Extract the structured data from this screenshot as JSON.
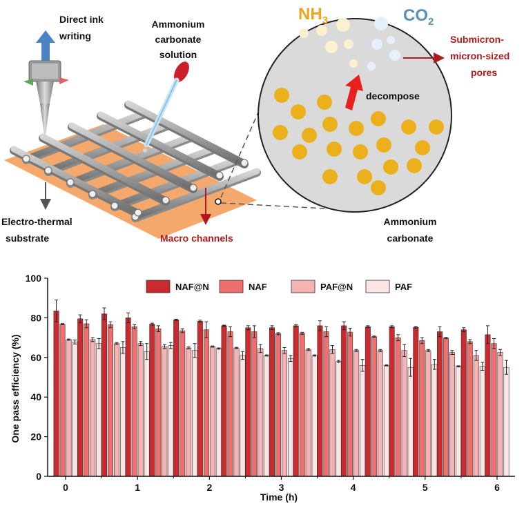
{
  "illustration": {
    "label_direct_ink": [
      "Direct ink",
      "writing"
    ],
    "label_ammonium_solution": [
      "Ammonium",
      "carbonate",
      "solution"
    ],
    "label_substrate": [
      "Electro-thermal",
      "substrate"
    ],
    "label_macro": "Macro channels",
    "label_nh3": "NH",
    "label_nh3_sub": "3",
    "label_co2": "CO",
    "label_co2_sub": "2",
    "label_pores": [
      "Submicron-",
      "micron-sized",
      "pores"
    ],
    "label_decompose": "decompose",
    "label_ammonium_carbonate": [
      "Ammonium",
      "carbonate"
    ],
    "colors": {
      "fiber": "#a7a7a7",
      "substrate": "#f5a86b",
      "red_label": "#b11a1a",
      "nh3": "#f0a41e",
      "co2": "#5a8fb8",
      "particle": "#ebb01c",
      "circle_fill": "#dadada",
      "arrow_blue": "#4a84c4"
    }
  },
  "chart_data": {
    "type": "bar",
    "xlabel": "Time (h)",
    "ylabel": "One pass efficiency (%)",
    "ylim": [
      0,
      100
    ],
    "xlim": [
      -0.25,
      6.25
    ],
    "yticks": [
      0,
      20,
      40,
      60,
      80,
      100
    ],
    "xticks": [
      0,
      1,
      2,
      3,
      4,
      5,
      6
    ],
    "legend_position": "top",
    "x": [
      0,
      0.333,
      0.667,
      1,
      1.333,
      1.667,
      2,
      2.333,
      2.667,
      3,
      3.333,
      3.667,
      4,
      4.333,
      4.667,
      5,
      5.333,
      5.667,
      6
    ],
    "series": [
      {
        "name": "NAF@N",
        "color": "#cc2a2f",
        "values": [
          83.5,
          79.5,
          82,
          80,
          76.8,
          79,
          78.3,
          76,
          75,
          75,
          76,
          76,
          76,
          75.5,
          75.5,
          75.2,
          73,
          74,
          71.5
        ],
        "errors": [
          5.5,
          2,
          3,
          2.5,
          0.5,
          0.3,
          0.5,
          0.3,
          1,
          1,
          0.5,
          2.5,
          2,
          0.5,
          0.5,
          0.5,
          2.5,
          1,
          4.5
        ]
      },
      {
        "name": "NAF",
        "color": "#ef6f6f",
        "values": [
          76.8,
          77,
          76.5,
          75.5,
          74.5,
          73.5,
          74,
          73,
          73,
          72,
          72.2,
          73,
          72.8,
          70.5,
          70,
          68.5,
          69.8,
          68,
          67
        ],
        "errors": [
          0.3,
          2,
          1.5,
          1,
          1.5,
          1,
          4,
          2.5,
          3,
          0.5,
          0.5,
          2.5,
          2,
          0.3,
          1.5,
          1.5,
          0.3,
          1,
          2.5
        ]
      },
      {
        "name": "PAF@N",
        "color": "#f5b3b3",
        "values": [
          69,
          69,
          67,
          67,
          65.5,
          64.8,
          65.5,
          64.8,
          64.5,
          63.5,
          64,
          64,
          63.5,
          63.5,
          63.5,
          63.5,
          62.5,
          61,
          62.5
        ],
        "errors": [
          0.3,
          1,
          0.5,
          1,
          1,
          0.5,
          0.3,
          0.3,
          2,
          1.5,
          0.5,
          2,
          0.5,
          0.5,
          3,
          0.5,
          1,
          2.5,
          1.5
        ]
      },
      {
        "name": "PAF",
        "color": "#fbe4e4",
        "values": [
          67.8,
          67,
          65,
          63,
          66,
          63.5,
          64.5,
          61,
          61,
          59.5,
          61,
          58,
          56,
          56,
          55,
          56.5,
          55.5,
          55.5,
          55
        ],
        "errors": [
          1,
          2.5,
          3,
          4,
          1.5,
          3.5,
          0.3,
          2,
          0.3,
          1.5,
          0.3,
          0.5,
          3,
          0.3,
          4.5,
          2.5,
          0.3,
          2,
          3.5
        ]
      }
    ]
  }
}
